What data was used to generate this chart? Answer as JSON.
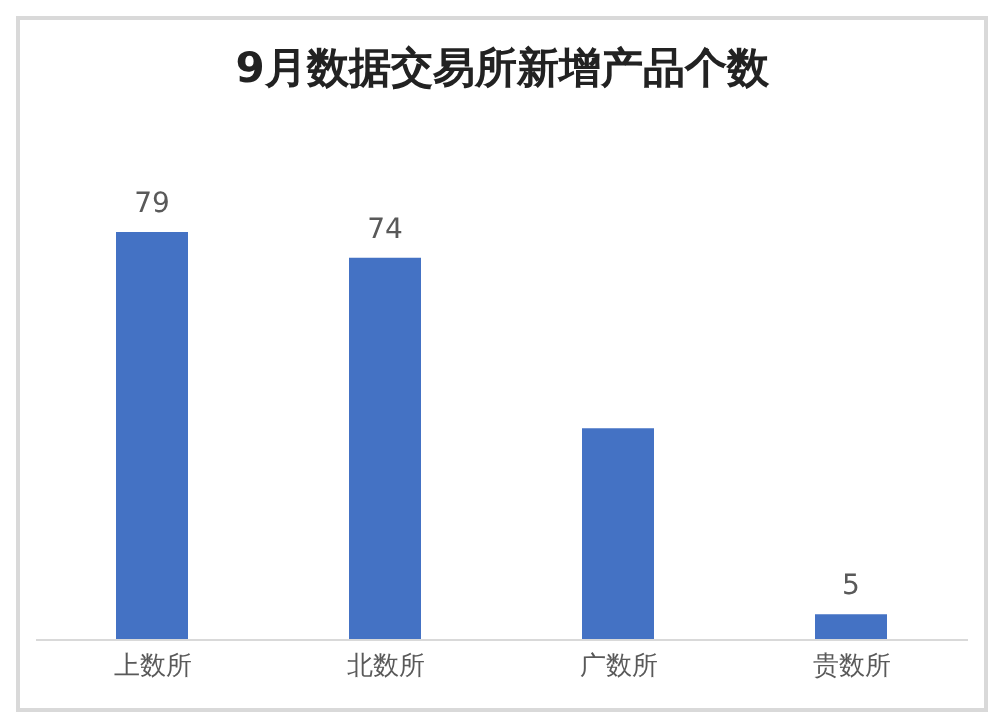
{
  "chart_data": {
    "type": "bar",
    "title": "9月数据交易所新增产品个数",
    "categories": [
      "上数所",
      "北数所",
      "广数所",
      "贵数所"
    ],
    "values": [
      79,
      74,
      41,
      5
    ],
    "value_labels": [
      "79",
      "74",
      null,
      "5"
    ],
    "color": "#4472c4"
  }
}
